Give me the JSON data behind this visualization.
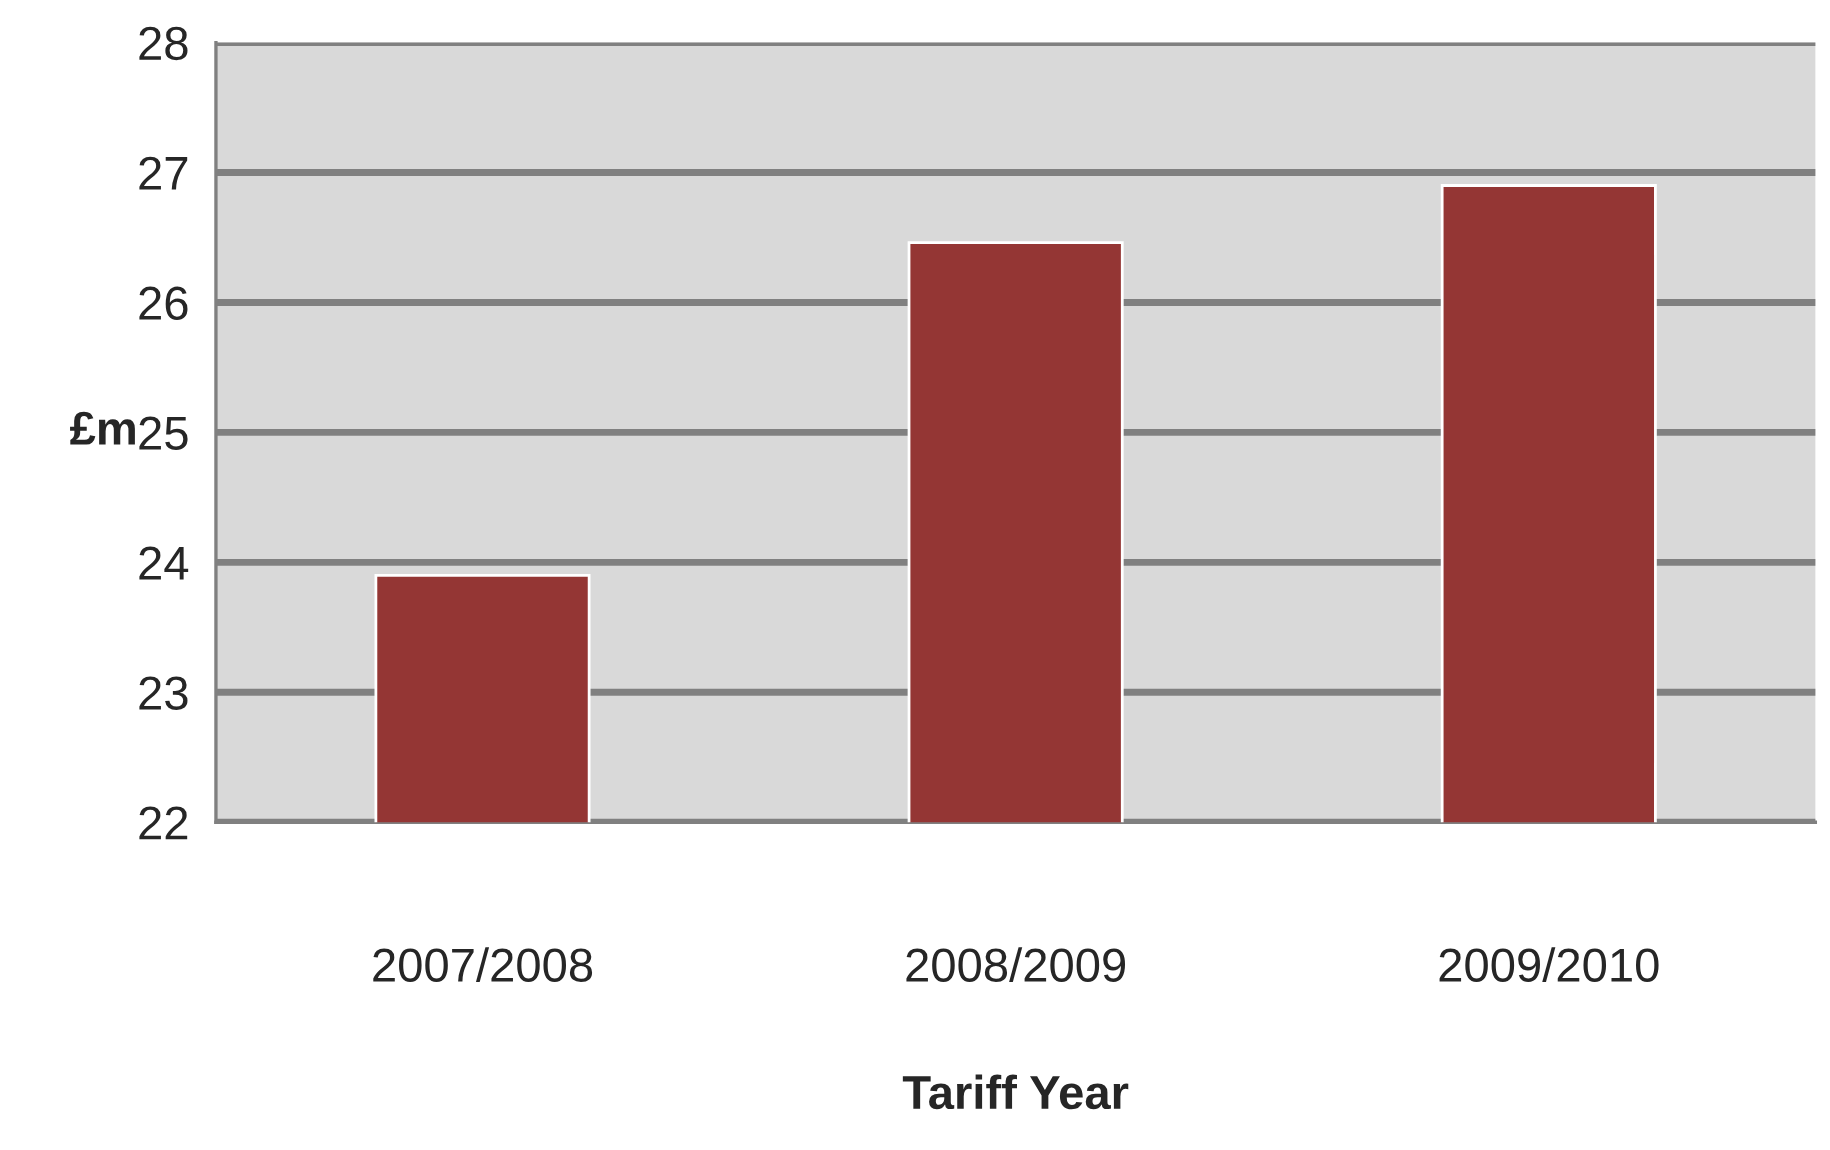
{
  "chart_data": {
    "type": "bar",
    "xlabel": "Tariff Year",
    "ylabel": "£m",
    "categories": [
      "2007/2008",
      "2008/2009",
      "2009/2010"
    ],
    "values": [
      23.9,
      26.46,
      26.9
    ],
    "color": "#943634",
    "ylim": [
      22,
      28
    ],
    "yticks": [
      22,
      23,
      24,
      25,
      26,
      27,
      28
    ],
    "grid": "y",
    "legend": false
  }
}
